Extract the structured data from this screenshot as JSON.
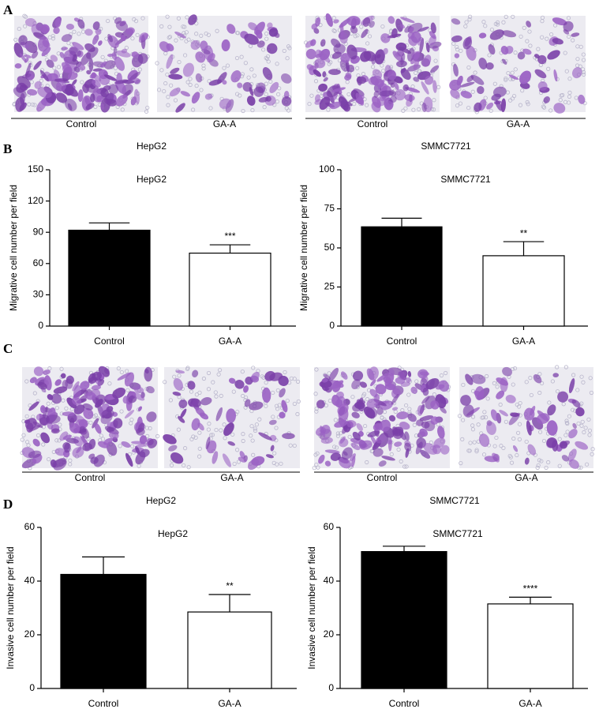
{
  "micrograph_panels": [
    {
      "label": "A",
      "groups": [
        {
          "name": "HepG2",
          "images": [
            "Control",
            "GA-A"
          ]
        },
        {
          "name": "SMMC7721",
          "images": [
            "Control",
            "GA-A"
          ]
        }
      ]
    },
    {
      "label": "C",
      "groups": [
        {
          "name": "HepG2",
          "images": [
            "Control",
            "GA-A"
          ]
        },
        {
          "name": "SMMC7721",
          "images": [
            "Control",
            "GA-A"
          ]
        }
      ]
    }
  ],
  "chart_panel_labels": [
    "B",
    "D"
  ],
  "chart_data": [
    {
      "type": "bar",
      "title": "HepG2",
      "y_label": "Migrative cell number per field",
      "categories": [
        "Control",
        "GA-A"
      ],
      "values": [
        92,
        70
      ],
      "errors": [
        7,
        8
      ],
      "colors": [
        "#000000",
        "#ffffff"
      ],
      "annotations": [
        {
          "x": "GA-A",
          "text": "***"
        }
      ],
      "ylim": [
        0,
        150
      ],
      "yticks": [
        0,
        30,
        60,
        90,
        120,
        150
      ]
    },
    {
      "type": "bar",
      "title": "SMMC7721",
      "y_label": "Migrative cell number per field",
      "categories": [
        "Control",
        "GA-A"
      ],
      "values": [
        63.5,
        45
      ],
      "errors": [
        5.5,
        9
      ],
      "colors": [
        "#000000",
        "#ffffff"
      ],
      "annotations": [
        {
          "x": "GA-A",
          "text": "**"
        }
      ],
      "ylim": [
        0,
        100
      ],
      "yticks": [
        0,
        25,
        50,
        75,
        100
      ]
    },
    {
      "type": "bar",
      "title": "HepG2",
      "y_label": "Invasive cell number per field",
      "categories": [
        "Control",
        "GA-A"
      ],
      "values": [
        42.5,
        28.5
      ],
      "errors": [
        6.5,
        6.5
      ],
      "colors": [
        "#000000",
        "#ffffff"
      ],
      "annotations": [
        {
          "x": "GA-A",
          "text": "**"
        }
      ],
      "ylim": [
        0,
        60
      ],
      "yticks": [
        0,
        20,
        40,
        60
      ]
    },
    {
      "type": "bar",
      "title": "SMMC7721",
      "y_label": "Invasive cell number per field",
      "categories": [
        "Control",
        "GA-A"
      ],
      "values": [
        51,
        31.5
      ],
      "errors": [
        2,
        2.5
      ],
      "colors": [
        "#000000",
        "#ffffff"
      ],
      "annotations": [
        {
          "x": "GA-A",
          "text": "****"
        }
      ],
      "ylim": [
        0,
        60
      ],
      "yticks": [
        0,
        20,
        40,
        60
      ]
    }
  ]
}
